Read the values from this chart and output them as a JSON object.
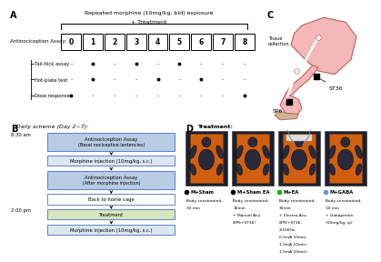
{
  "panel_A": {
    "top_text": "Repeated morphine (10mg/kg, bid) exposure",
    "top_text2": "+ Treatment",
    "assay_label": "Antinociception Assay:",
    "days": [
      "0",
      "1",
      "2",
      "3",
      "4",
      "5",
      "6",
      "7",
      "8"
    ],
    "tissue_text": "Tissue\ncollection",
    "rows": [
      {
        "label": "Tail-flick assay",
        "dots": [
          0,
          1,
          0,
          1,
          0,
          1,
          0,
          0,
          0
        ]
      },
      {
        "label": "Hot-plate test",
        "dots": [
          0,
          1,
          0,
          0,
          1,
          0,
          1,
          0,
          0
        ]
      },
      {
        "label": "Dose response",
        "dots": [
          1,
          0,
          0,
          0,
          0,
          0,
          0,
          0,
          1
        ]
      }
    ]
  },
  "panel_B": {
    "title": "Daily scheme (Day 2~7):",
    "time1": "8:30 am",
    "time2": "2:00 pm",
    "boxes": [
      {
        "text": "Antinociception Assay\n(Basel nociceptive lantencies)",
        "color": "#b8cce4"
      },
      {
        "text": "Morphine injection (10mg/kg, s.c.)",
        "color": "#dce6f1"
      },
      {
        "text": "Antinociception Assay\n(After morphine injection)",
        "color": "#b8cce4"
      },
      {
        "text": "Back to home cage",
        "color": "#ffffff"
      },
      {
        "text": "Treatment",
        "color": "#d8e4bc"
      },
      {
        "text": "Morphine injection (10mg/kg, s.c.)",
        "color": "#dce6f1"
      }
    ]
  },
  "panel_C": {
    "label_SP6": "SP6",
    "label_ST36": "ST36",
    "body_color": "#f4b8b8",
    "body_edge": "#c06060",
    "bone_color": "#f0f0d0",
    "foot_color": "#c8b890"
  },
  "panel_D": {
    "title": "Treatment:",
    "groups": [
      {
        "dot_color": "black",
        "label": "M+Sham",
        "desc": "Body constrained,\n30 min"
      },
      {
        "dot_color": "black",
        "label": "M+Sham EA",
        "desc": "Body constrained,\n10min\n+ Manual Acu\n(SP6+ST36)"
      },
      {
        "dot_color": "#00bb00",
        "label": "M+EA",
        "desc": "Body constrained,\n30min\n+ Electro-Acu\n(SP6+ST36,\n2/100Hz,\n0.5mA 10min;\n1.0mA 10min;\n1.5mA 10min)"
      },
      {
        "dot_color": "#6699cc",
        "label": "M+GABA",
        "desc": "Body constrained,\n30 min\n+ Gabapentin\n(50mg/kg, ip)"
      }
    ],
    "board_color": "#d06010",
    "mouse_dark": "#2a2a3a",
    "mouse_mid": "#555566",
    "bg_dark": "#1a2030"
  },
  "bg_color": "#ffffff"
}
